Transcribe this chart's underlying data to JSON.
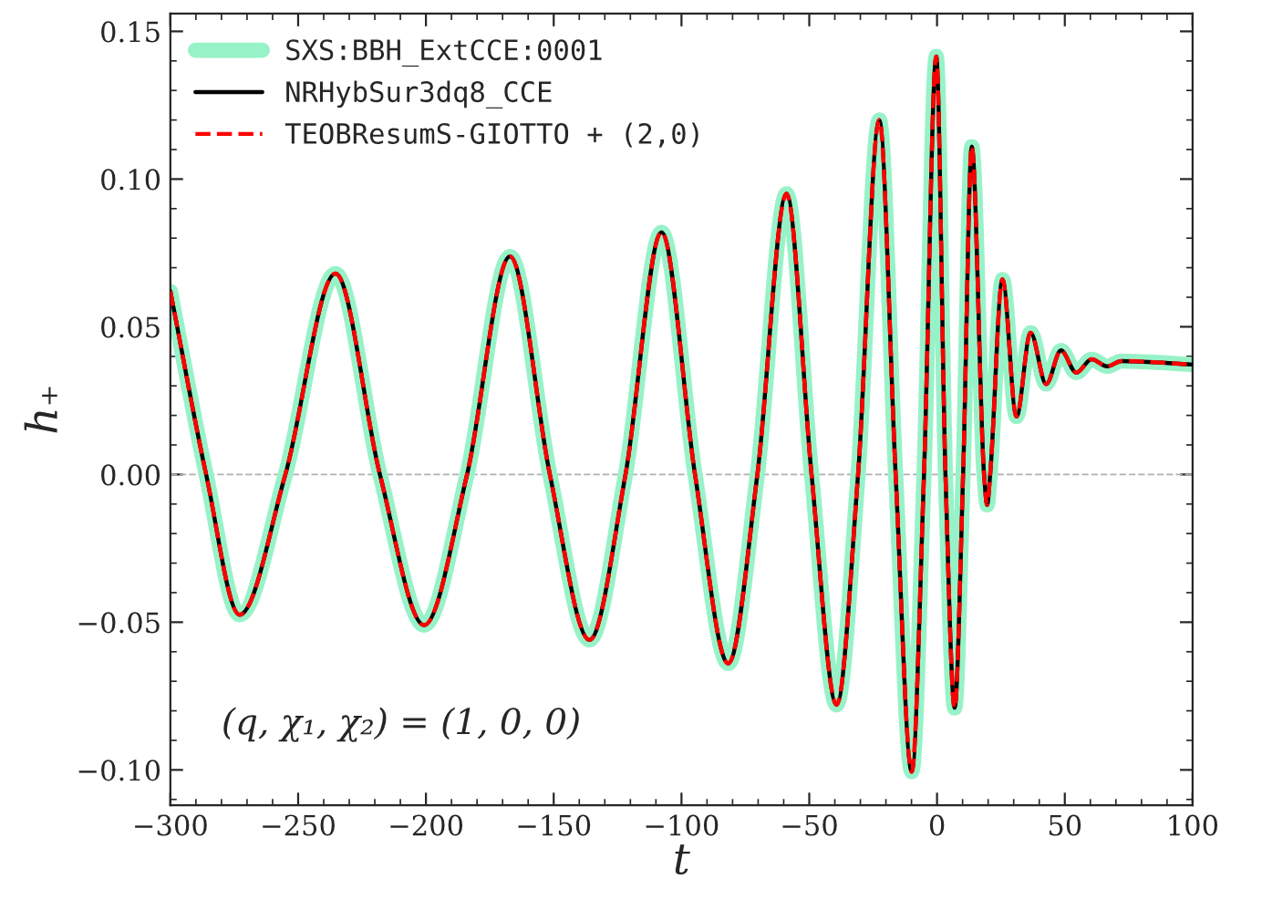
{
  "chart_data": {
    "type": "line",
    "xlabel": "t",
    "ylabel": "h₊",
    "x": [
      -300,
      -286,
      -272.9,
      -255,
      -235.4,
      -218,
      -200.7,
      -183.9,
      -167.1,
      -151.5,
      -136,
      -121.9,
      -107.8,
      -94.7,
      -81.7,
      -70.3,
      -58.9,
      -49.1,
      -39.3,
      -30.9,
      -22.6,
      -16.2,
      -9.9,
      -5.1,
      -0.3,
      3.3,
      6.9,
      10.2,
      13.6,
      18.4,
      19.6,
      20.8,
      25.6,
      31.1,
      36.6,
      42.7,
      48.5,
      54.5,
      60.5,
      66.5,
      72.2,
      100
    ],
    "series": [
      {
        "name": "SXS:BBH_ExtCCE:0001",
        "color": "#98f2c8",
        "line_style": "solid",
        "values": [
          0.062,
          0,
          -0.0475,
          0,
          0.068,
          0,
          -0.051,
          0,
          0.0738,
          0,
          -0.056,
          0,
          0.082,
          0,
          -0.064,
          0,
          0.095,
          0,
          -0.078,
          0,
          0.12,
          0,
          -0.1006,
          0,
          0.1415,
          0,
          -0.079,
          0,
          0.111,
          0,
          -0.0103,
          0,
          0.066,
          0.0196,
          0.048,
          0.0306,
          0.042,
          0.0345,
          0.039,
          0.0366,
          0.0384,
          0.0372
        ]
      },
      {
        "name": "NRHybSur3dq8_CCE",
        "color": "#000000",
        "line_style": "solid",
        "values": [
          0.062,
          0,
          -0.0475,
          0,
          0.068,
          0,
          -0.051,
          0,
          0.0738,
          0,
          -0.056,
          0,
          0.082,
          0,
          -0.064,
          0,
          0.095,
          0,
          -0.078,
          0,
          0.12,
          0,
          -0.1006,
          0,
          0.1415,
          0,
          -0.079,
          0,
          0.111,
          0,
          -0.0103,
          0,
          0.066,
          0.0196,
          0.048,
          0.0306,
          0.042,
          0.0345,
          0.039,
          0.0366,
          0.0384,
          0.0372
        ]
      },
      {
        "name": "TEOBResumS-GIOTTO + (2,0)",
        "color": "#ff0000",
        "line_style": "dashed",
        "values": [
          0.062,
          0,
          -0.0475,
          0,
          0.068,
          0,
          -0.051,
          0,
          0.0738,
          0,
          -0.056,
          0,
          0.082,
          0,
          -0.064,
          0,
          0.095,
          0,
          -0.078,
          0,
          0.12,
          0,
          -0.1006,
          0,
          0.1415,
          0,
          -0.079,
          0,
          0.111,
          0,
          -0.0103,
          0,
          0.066,
          0.0196,
          0.048,
          0.0306,
          0.042,
          0.0345,
          0.039,
          0.0366,
          0.0384,
          0.0372
        ]
      }
    ],
    "xlim": [
      -300,
      100
    ],
    "xticks": [
      {
        "value": -300,
        "label": "−300"
      },
      {
        "value": -250,
        "label": "−250"
      },
      {
        "value": -200,
        "label": "−200"
      },
      {
        "value": -150,
        "label": "−150"
      },
      {
        "value": -100,
        "label": "−100"
      },
      {
        "value": -50,
        "label": "−50"
      },
      0,
      50,
      100
    ],
    "ylim": [
      -0.112,
      0.156
    ],
    "yticks": [
      {
        "value": -0.1,
        "label": "−0.10"
      },
      {
        "value": -0.05,
        "label": "−0.05"
      },
      {
        "value": 0,
        "label": "0.00"
      },
      {
        "value": 0.05,
        "label": "0.05"
      },
      {
        "value": 0.1,
        "label": "0.10"
      },
      {
        "value": 0.15,
        "label": "0.15"
      }
    ],
    "ref_lines": [
      {
        "axis": "y",
        "value": 0,
        "color": "#b0b0b0",
        "line_style": "dashed"
      }
    ],
    "annotations": [
      "(q, χ₁, χ₂) = (1, 0, 0)"
    ],
    "legend": "top left",
    "grid": false
  }
}
